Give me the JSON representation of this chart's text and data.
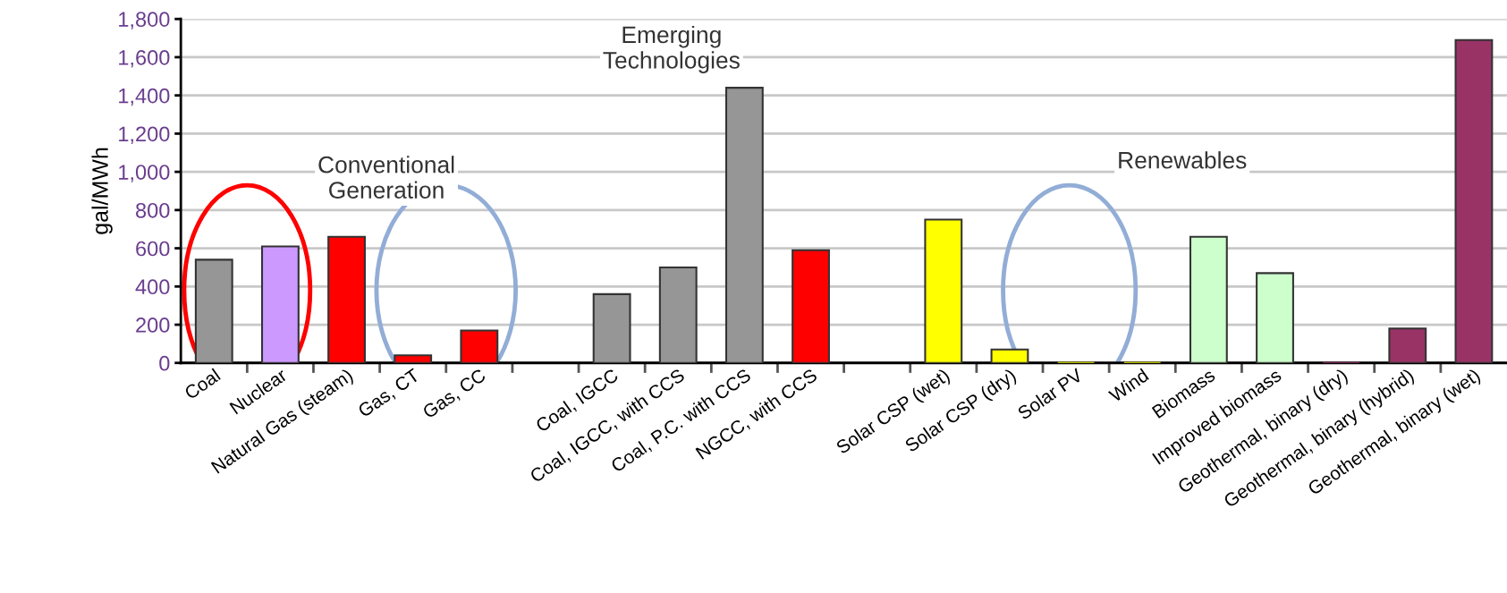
{
  "chart_data": {
    "type": "bar",
    "ylabel": "gal/MWh",
    "categories": [
      "Coal",
      "Nuclear",
      "Natural Gas (steam)",
      "Gas, CT",
      "Gas, CC",
      null,
      "Coal, IGCC",
      "Coal, IGCC, with CCS",
      "Coal, P.C. with CCS",
      "NGCC, with CCS",
      null,
      "Solar CSP (wet)",
      "Solar CSP (dry)",
      "Solar PV",
      "Wind",
      "Biomass",
      "Improved biomass",
      "Geothermal, binary (dry)",
      "Geothermal, binary (hybrid)",
      "Geothermal, binary (wet)"
    ],
    "values": [
      540,
      610,
      660,
      40,
      170,
      null,
      360,
      500,
      1440,
      590,
      null,
      750,
      70,
      0,
      0,
      660,
      470,
      0,
      180,
      1690
    ],
    "colors": [
      "#969696",
      "#cc99ff",
      "#ff0000",
      "#ff0000",
      "#ff0000",
      "#969696",
      "#969696",
      "#969696",
      "#969696",
      "#ff0000",
      "#969696",
      "#ffff00",
      "#ffff00",
      "#ffff00",
      "#ffff00",
      "#ccffcc",
      "#ccffcc",
      "#993366",
      "#993366",
      "#993366"
    ],
    "ylim": [
      0,
      1800
    ],
    "yticks": [
      {
        "value": 0,
        "label": "0"
      },
      {
        "value": 200,
        "label": "200"
      },
      {
        "value": 400,
        "label": "400"
      },
      {
        "value": 600,
        "label": "600"
      },
      {
        "value": 800,
        "label": "800"
      },
      {
        "value": 1000,
        "label": "1,000"
      },
      {
        "value": 1200,
        "label": "1,200"
      },
      {
        "value": 1400,
        "label": "1,400"
      },
      {
        "value": 1600,
        "label": "1,600"
      },
      {
        "value": 1800,
        "label": "1,800"
      }
    ],
    "grid": "y",
    "annotations": [
      "Conventional\nGeneration",
      "Emerging\nTechnologies",
      "Renewables"
    ]
  }
}
